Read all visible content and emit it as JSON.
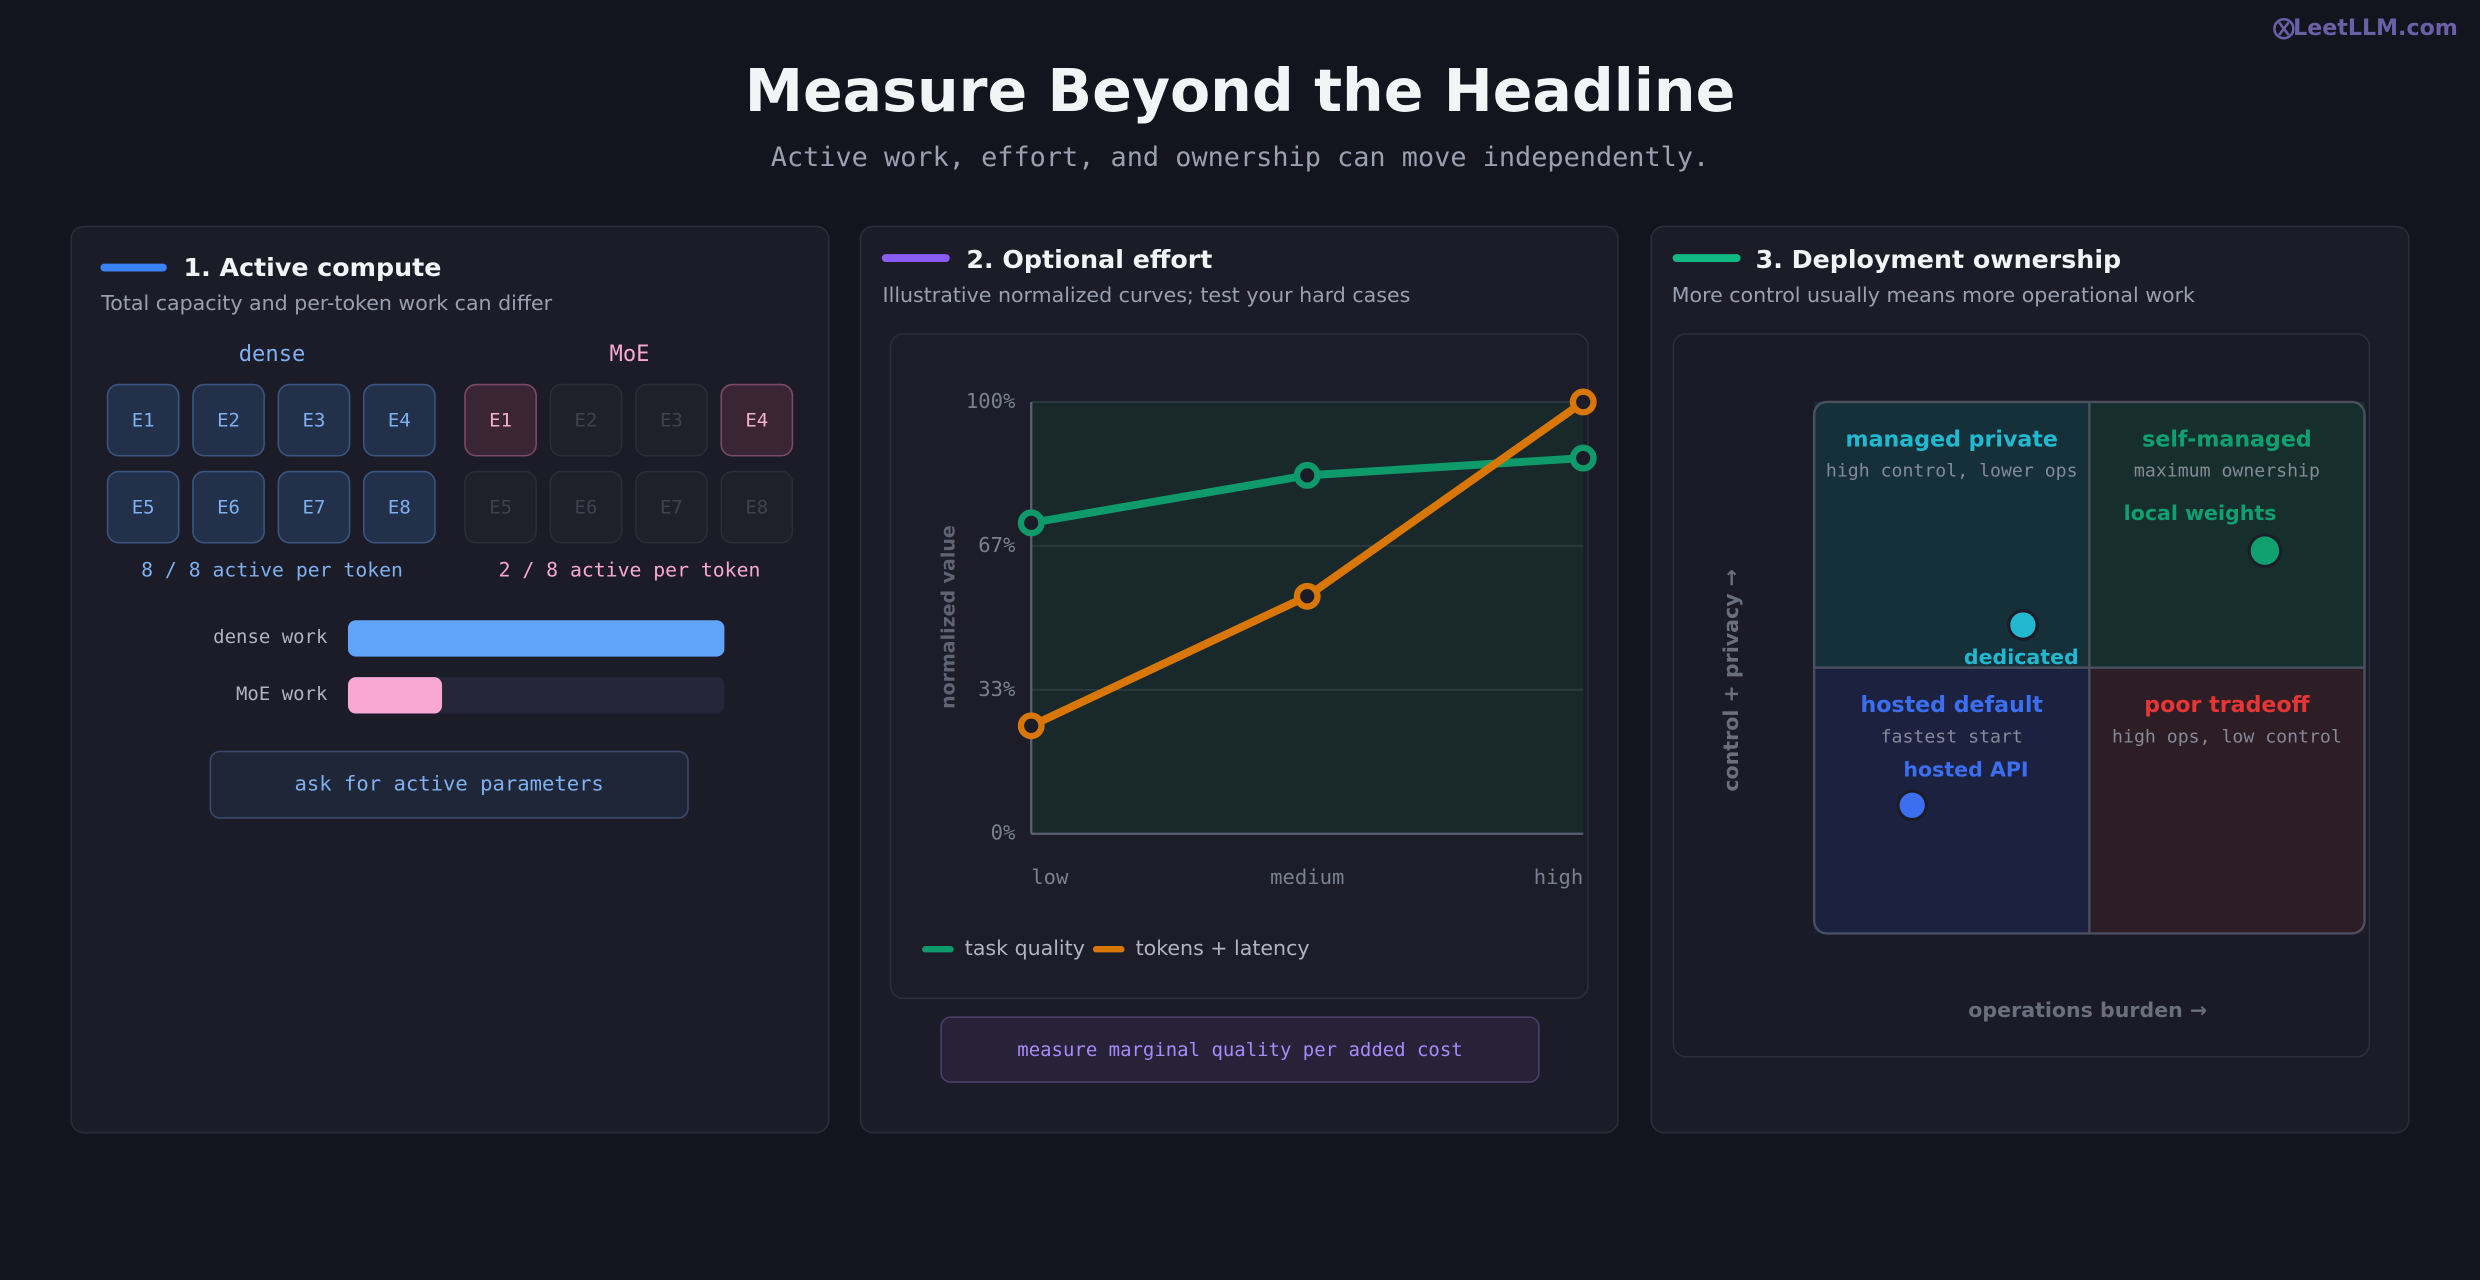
{
  "brand": "LeetLLM.com",
  "header": {
    "title": "Measure Beyond the Headline",
    "subtitle": "Active work, effort, and ownership can move independently."
  },
  "panels": [
    {
      "title": "1. Active compute",
      "subtitle": "Total capacity and per-token work can differ",
      "groups": [
        {
          "name": "dense",
          "experts": [
            "E1",
            "E2",
            "E3",
            "E4",
            "E5",
            "E6",
            "E7",
            "E8"
          ],
          "active": [
            true,
            true,
            true,
            true,
            true,
            true,
            true,
            true
          ],
          "caption": "8 / 8 active per token"
        },
        {
          "name": "MoE",
          "experts": [
            "E1",
            "E2",
            "E3",
            "E4",
            "E5",
            "E6",
            "E7",
            "E8"
          ],
          "active": [
            true,
            false,
            false,
            true,
            false,
            false,
            false,
            false
          ],
          "caption": "2 / 8 active per token"
        }
      ],
      "work_xlim": [
        0,
        100
      ],
      "work_bars": [
        {
          "label": "dense work",
          "value": 100
        },
        {
          "label": "MoE work",
          "value": 25
        }
      ],
      "button": "ask for active parameters"
    },
    {
      "title": "2. Optional effort",
      "subtitle": "Illustrative normalized curves; test your hard cases",
      "chart": {
        "type": "line",
        "categories": [
          "low",
          "medium",
          "high"
        ],
        "ylabel": "normalized value",
        "ylim": [
          0,
          100
        ],
        "yticks": [
          {
            "value": 0,
            "label": "0%"
          },
          {
            "value": 33.33,
            "label": "33%"
          },
          {
            "value": 66.67,
            "label": "67%"
          },
          {
            "value": 100,
            "label": "100%"
          }
        ],
        "series": [
          {
            "name": "task quality",
            "color": "#0f9a6b",
            "values": [
              72,
              83,
              87
            ]
          },
          {
            "name": "tokens + latency",
            "color": "#d97706",
            "values": [
              25,
              55,
              100
            ]
          }
        ]
      },
      "button": "measure marginal quality per added cost"
    },
    {
      "title": "3. Deployment ownership",
      "subtitle": "More control usually means more operational work",
      "y_axis_label": "control + privacy →",
      "x_axis_label": "operations burden →",
      "quadrants": [
        {
          "title": "managed private",
          "note": "high control, lower ops"
        },
        {
          "title": "self-managed",
          "note": "maximum ownership"
        },
        {
          "title": "hosted default",
          "note": "fastest start"
        },
        {
          "title": "poor tradeoff",
          "note": "high ops, low control"
        }
      ],
      "points": [
        {
          "label": "local weights"
        },
        {
          "label": "dedicated"
        },
        {
          "label": "hosted API"
        }
      ]
    }
  ]
}
